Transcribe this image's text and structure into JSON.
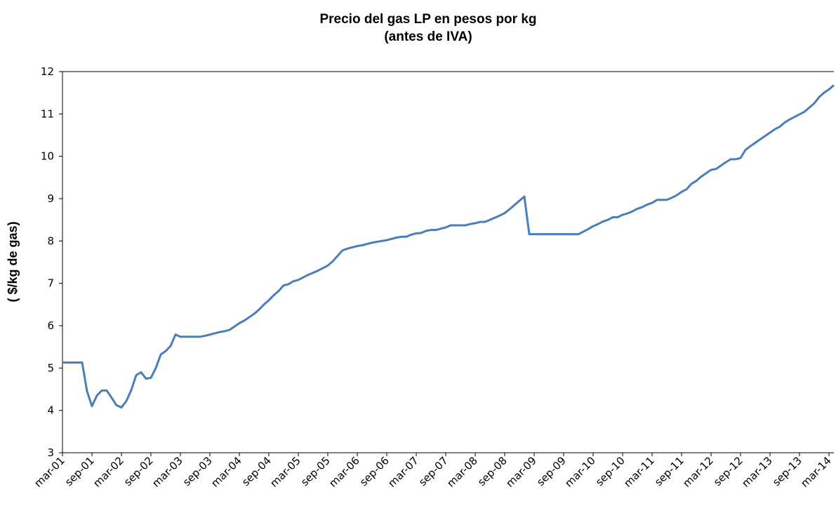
{
  "chart_data": {
    "type": "line",
    "title": "Precio del gas LP en pesos por kg",
    "subtitle": "(antes de IVA)",
    "y_label": "( $/kg de gas)",
    "categories": [
      "mar-01",
      null,
      null,
      null,
      null,
      null,
      "sep-01",
      null,
      null,
      null,
      null,
      null,
      "mar-02",
      null,
      null,
      null,
      null,
      null,
      "sep-02",
      null,
      null,
      null,
      null,
      null,
      "mar-03",
      null,
      null,
      null,
      null,
      null,
      "sep-03",
      null,
      null,
      null,
      null,
      null,
      "mar-04",
      null,
      null,
      null,
      null,
      null,
      "sep-04",
      null,
      null,
      null,
      null,
      null,
      "mar-05",
      null,
      null,
      null,
      null,
      null,
      "sep-05",
      null,
      null,
      null,
      null,
      null,
      "mar-06",
      null,
      null,
      null,
      null,
      null,
      "sep-06",
      null,
      null,
      null,
      null,
      null,
      "mar-07",
      null,
      null,
      null,
      null,
      null,
      "sep-07",
      null,
      null,
      null,
      null,
      null,
      "mar-08",
      null,
      null,
      null,
      null,
      null,
      "sep-08",
      null,
      null,
      null,
      null,
      null,
      "mar-09",
      null,
      null,
      null,
      null,
      null,
      "sep-09",
      null,
      null,
      null,
      null,
      null,
      "mar-10",
      null,
      null,
      null,
      null,
      null,
      "sep-10",
      null,
      null,
      null,
      null,
      null,
      "mar-11",
      null,
      null,
      null,
      null,
      null,
      "sep-11",
      null,
      null,
      null,
      null,
      null,
      "mar-12",
      null,
      null,
      null,
      null,
      null,
      "sep-12",
      null,
      null,
      null,
      null,
      null,
      "mar-13",
      null,
      null,
      null,
      null,
      null,
      "sep-13",
      null,
      null,
      null,
      null,
      null,
      "mar-14",
      null
    ],
    "series": [
      {
        "name": "Precio",
        "color": "#4a7ebb",
        "values": [
          5.13,
          5.13,
          5.13,
          5.13,
          5.13,
          4.45,
          4.1,
          4.35,
          4.47,
          4.47,
          4.3,
          4.12,
          4.07,
          4.22,
          4.48,
          4.83,
          4.9,
          4.75,
          4.77,
          5.0,
          5.32,
          5.4,
          5.52,
          5.79,
          5.74,
          5.74,
          5.74,
          5.74,
          5.74,
          5.76,
          5.79,
          5.82,
          5.85,
          5.87,
          5.9,
          5.98,
          6.06,
          6.12,
          6.2,
          6.28,
          6.38,
          6.5,
          6.6,
          6.72,
          6.82,
          6.95,
          6.98,
          7.05,
          7.08,
          7.14,
          7.2,
          7.25,
          7.3,
          7.36,
          7.42,
          7.52,
          7.65,
          7.78,
          7.82,
          7.85,
          7.88,
          7.9,
          7.93,
          7.96,
          7.98,
          8.0,
          8.02,
          8.05,
          8.08,
          8.1,
          8.1,
          8.15,
          8.18,
          8.19,
          8.24,
          8.26,
          8.26,
          8.29,
          8.32,
          8.37,
          8.37,
          8.37,
          8.37,
          8.4,
          8.42,
          8.45,
          8.45,
          8.5,
          8.55,
          8.6,
          8.66,
          8.75,
          8.85,
          8.95,
          9.05,
          8.16,
          8.16,
          8.16,
          8.16,
          8.16,
          8.16,
          8.16,
          8.16,
          8.16,
          8.16,
          8.16,
          8.22,
          8.28,
          8.35,
          8.4,
          8.46,
          8.5,
          8.56,
          8.56,
          8.62,
          8.65,
          8.7,
          8.76,
          8.8,
          8.86,
          8.9,
          8.97,
          8.97,
          8.97,
          9.02,
          9.08,
          9.16,
          9.22,
          9.35,
          9.42,
          9.52,
          9.6,
          9.68,
          9.7,
          9.78,
          9.86,
          9.93,
          9.93,
          9.96,
          10.15,
          10.24,
          10.32,
          10.4,
          10.48,
          10.56,
          10.64,
          10.7,
          10.8,
          10.87,
          10.93,
          10.99,
          11.05,
          11.15,
          11.25,
          11.4,
          11.5,
          11.58,
          11.68
        ]
      }
    ],
    "ylim": [
      3,
      12
    ],
    "yticks": [
      3,
      4,
      5,
      6,
      7,
      8,
      9,
      10,
      11,
      12
    ],
    "grid": false
  }
}
